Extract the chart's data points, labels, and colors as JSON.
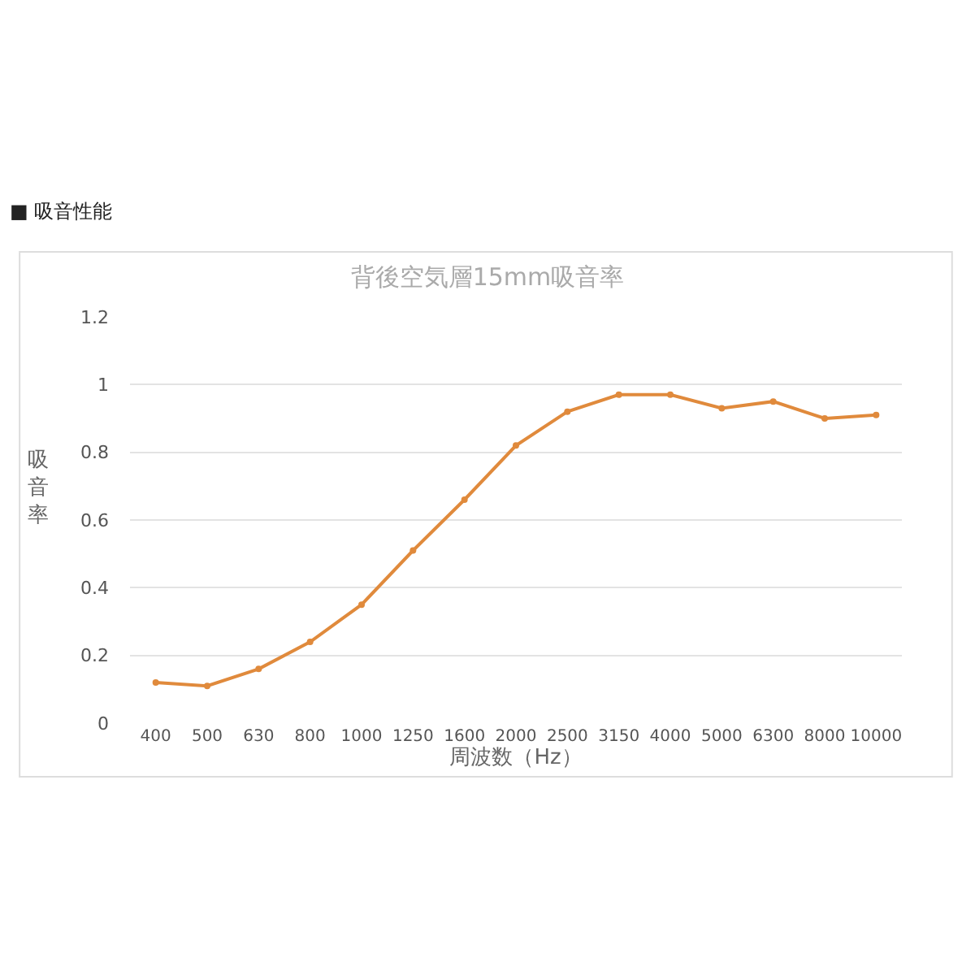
{
  "chart_data": {
    "type": "line",
    "title": "背後空気層15mm吸音率",
    "xlabel": "周波数（Hz）",
    "ylabel": "吸音率",
    "annotations": [
      "■ 吸音性能"
    ],
    "categories": [
      "400",
      "500",
      "630",
      "800",
      "1000",
      "1250",
      "1600",
      "2000",
      "2500",
      "3150",
      "4000",
      "5000",
      "6300",
      "8000",
      "10000"
    ],
    "series": [
      {
        "color": "#e08a3c",
        "values": [
          0.12,
          0.11,
          0.16,
          0.24,
          0.35,
          0.51,
          0.66,
          0.82,
          0.92,
          0.97,
          0.97,
          0.93,
          0.95,
          0.9,
          0.91
        ]
      }
    ],
    "ylim": [
      0,
      1.2
    ],
    "yticks": [
      0,
      {
        "value": 0.2,
        "label": "0.2"
      },
      {
        "value": 0.4,
        "label": "0.4"
      },
      {
        "value": 0.6,
        "label": "0.6"
      },
      {
        "value": 0.8,
        "label": "0.8"
      },
      1,
      {
        "value": 1.2,
        "label": "1.2"
      }
    ],
    "grid": "y",
    "marker": "circle",
    "line_style": "solid"
  }
}
